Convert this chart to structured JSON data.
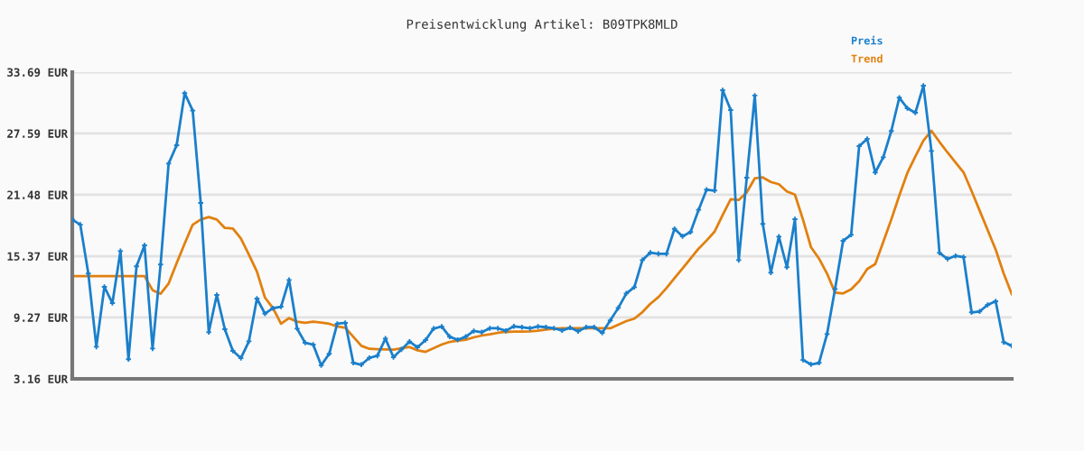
{
  "chart_data": {
    "type": "line",
    "title": "Preisentwicklung Artikel: B09TPK8MLD",
    "categories": [
      null,
      null,
      null,
      null,
      null,
      null,
      null,
      null,
      null,
      null,
      null,
      null,
      null,
      null,
      null,
      null,
      null,
      null,
      null,
      null,
      null,
      null,
      null,
      null,
      null,
      null,
      null,
      null,
      null,
      null,
      null,
      null,
      null,
      null,
      null,
      null,
      null,
      null,
      null,
      null,
      null,
      null,
      null,
      null,
      null,
      null,
      null,
      null,
      null,
      null,
      null,
      null,
      null,
      null,
      null,
      null,
      null,
      null,
      null,
      null,
      null,
      null,
      null,
      null,
      null,
      null,
      null,
      null,
      null,
      null,
      null,
      null,
      null,
      null,
      null,
      null,
      null,
      null,
      null,
      null,
      null,
      null,
      null,
      null,
      null,
      null,
      null,
      null,
      null,
      null,
      null,
      null,
      null,
      null,
      null,
      null,
      null,
      null,
      null,
      null,
      null,
      null,
      null,
      null,
      null,
      null,
      null,
      null,
      null,
      null,
      null,
      null,
      null,
      null,
      null,
      null,
      null,
      null
    ],
    "series": [
      {
        "name": "Preis",
        "color": "#1a7fcb",
        "marker": "cross",
        "values": [
          19.02,
          18.51,
          13.64,
          6.36,
          12.32,
          10.7,
          15.88,
          5.11,
          14.36,
          16.45,
          6.18,
          14.54,
          24.59,
          26.42,
          31.6,
          29.86,
          20.67,
          7.8,
          11.51,
          8.1,
          5.94,
          5.22,
          6.9,
          11.15,
          9.65,
          10.19,
          10.34,
          13.01,
          8.16,
          6.75,
          6.57,
          4.5,
          5.65,
          8.64,
          8.73,
          4.75,
          4.57,
          5.25,
          5.46,
          7.17,
          5.31,
          6.09,
          6.87,
          6.3,
          7.02,
          8.16,
          8.37,
          7.35,
          7.05,
          7.35,
          7.92,
          7.8,
          8.19,
          8.19,
          7.95,
          8.39,
          8.3,
          8.19,
          8.37,
          8.3,
          8.19,
          7.98,
          8.25,
          7.89,
          8.3,
          8.3,
          7.74,
          8.97,
          10.22,
          11.66,
          12.29,
          14.98,
          15.73,
          15.61,
          15.61,
          18.09,
          17.35,
          17.77,
          19.98,
          21.99,
          21.9,
          31.89,
          29.92,
          14.98,
          23.18,
          31.36,
          18.58,
          13.73,
          17.32,
          14.27,
          19.05,
          5.04,
          4.59,
          4.75,
          7.62,
          12.11,
          16.9,
          17.5,
          26.33,
          27.05,
          23.7,
          25.22,
          27.83,
          31.15,
          30.1,
          29.65,
          32.34,
          25.85,
          15.7,
          15.1,
          15.4,
          15.28,
          9.78,
          9.87,
          10.52,
          10.88,
          6.81,
          6.45
        ]
      },
      {
        "name": "Trend",
        "color": "#e2800f",
        "marker": "none",
        "values": [
          13.39,
          13.39,
          13.39,
          13.39,
          13.39,
          13.39,
          13.39,
          13.39,
          13.39,
          13.39,
          11.99,
          11.63,
          12.65,
          14.68,
          16.63,
          18.51,
          19.02,
          19.26,
          19.02,
          18.18,
          18.13,
          17.14,
          15.52,
          13.84,
          11.24,
          10.2,
          8.64,
          9.2,
          8.85,
          8.73,
          8.85,
          8.76,
          8.64,
          8.37,
          8.25,
          7.35,
          6.45,
          6.15,
          6.12,
          6.09,
          6.06,
          6.21,
          6.33,
          6.0,
          5.85,
          6.21,
          6.57,
          6.84,
          6.96,
          7.05,
          7.29,
          7.47,
          7.59,
          7.74,
          7.83,
          7.86,
          7.86,
          7.89,
          7.95,
          8.07,
          8.16,
          8.19,
          8.19,
          8.19,
          8.19,
          8.19,
          8.19,
          8.19,
          8.55,
          8.91,
          9.15,
          9.8,
          10.64,
          11.3,
          12.2,
          13.19,
          14.14,
          15.13,
          16.12,
          16.93,
          17.82,
          19.47,
          21.03,
          20.97,
          21.72,
          23.12,
          23.21,
          22.76,
          22.53,
          21.81,
          21.5,
          19.02,
          16.27,
          15.13,
          13.64,
          11.75,
          11.66,
          12.07,
          12.88,
          14.09,
          14.59,
          16.78,
          19.02,
          21.41,
          23.66,
          25.31,
          26.87,
          27.85,
          26.75,
          25.7,
          24.71,
          23.72,
          21.86,
          19.92,
          17.98,
          16.03,
          13.64,
          11.6
        ]
      }
    ],
    "ylim": [
      3.16,
      33.69
    ],
    "yticks": [
      {
        "value": 3.16,
        "label": "3.16 EUR"
      },
      {
        "value": 9.27,
        "label": "9.27 EUR"
      },
      {
        "value": 15.37,
        "label": "15.37 EUR"
      },
      {
        "value": 21.48,
        "label": "21.48 EUR"
      },
      {
        "value": 27.59,
        "label": "27.59 EUR"
      },
      {
        "value": 33.69,
        "label": "33.69 EUR"
      }
    ],
    "grid": "y",
    "legend": "top right"
  }
}
